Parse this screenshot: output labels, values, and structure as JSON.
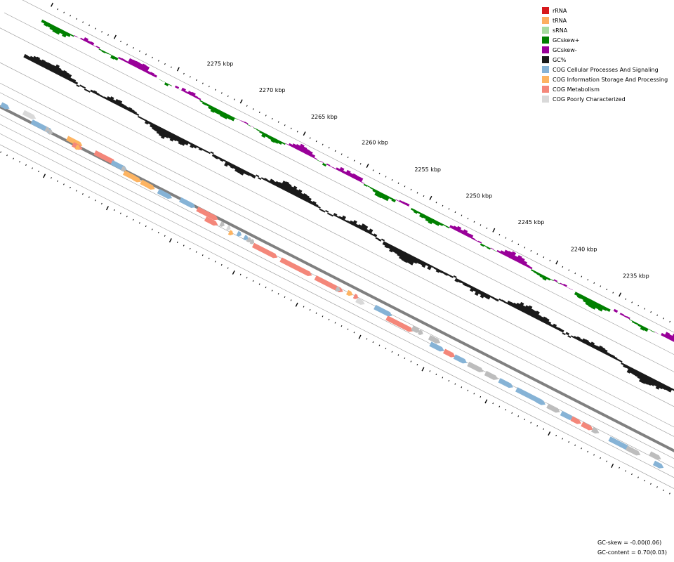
{
  "legend": [
    {
      "label": "rRNA",
      "color": "#d7191c",
      "icon": "rrna-swatch"
    },
    {
      "label": "tRNA",
      "color": "#fdae61",
      "icon": "trna-swatch"
    },
    {
      "label": "sRNA",
      "color": "#a6dba0",
      "icon": "srna-swatch"
    },
    {
      "label": "GCskew+",
      "color": "#008000",
      "icon": "gcskew-plus-swatch"
    },
    {
      "label": "GCskew-",
      "color": "#990099",
      "icon": "gcskew-minus-swatch"
    },
    {
      "label": "GC%",
      "color": "#1a1a1a",
      "icon": "gc-content-swatch"
    },
    {
      "label": "COG Cellular Processes And Signaling",
      "color": "#86b3d6",
      "icon": "cog-cellular-swatch"
    },
    {
      "label": "COG Information Storage And Processing",
      "color": "#fdb462",
      "icon": "cog-information-swatch"
    },
    {
      "label": "COG Metabolism",
      "color": "#f4877a",
      "icon": "cog-metabolism-swatch"
    },
    {
      "label": "COG Poorly Characterized",
      "color": "#d9d9d9",
      "icon": "cog-poorly-swatch"
    }
  ],
  "scale_labels": [
    "2275 kbp",
    "2270 kbp",
    "2265 kbp",
    "2260 kbp",
    "2255 kbp",
    "2250 kbp",
    "2245 kbp",
    "2240 kbp",
    "2235 kbp"
  ],
  "stats": {
    "gc_skew": "GC-skew = -0.00(0.06)",
    "gc_content": "GC-content = 0.70(0.03)"
  },
  "colors": {
    "gc_plus": "#008000",
    "gc_minus": "#990099",
    "gc_content": "#1a1a1a",
    "cellular": "#86b3d6",
    "information": "#fdb462",
    "metabolism": "#f4877a",
    "poorly": "#d9d9d9",
    "grey": "#bdbdbd",
    "backbone": "#808080",
    "guide": "#999999"
  },
  "features": [
    {
      "t": 0.0,
      "lane": 1,
      "len": 0.012,
      "cat": "cellular"
    },
    {
      "t": 0.03,
      "lane": -1,
      "len": 0.018,
      "cat": "poorly"
    },
    {
      "t": 0.045,
      "lane": 2,
      "len": 0.03,
      "cat": "cellular"
    },
    {
      "t": 0.065,
      "lane": 2,
      "len": 0.006,
      "cat": "grey"
    },
    {
      "t": 0.07,
      "lane": 2.6,
      "len": 0.006,
      "cat": "grey"
    },
    {
      "t": 0.095,
      "lane": 1.0,
      "len": 0.022,
      "cat": "information"
    },
    {
      "t": 0.105,
      "lane": 2.9,
      "len": 0.014,
      "cat": "metabolism"
    },
    {
      "t": 0.11,
      "lane": 3.4,
      "len": 0.006,
      "cat": "information"
    },
    {
      "t": 0.135,
      "lane": 1.2,
      "len": 0.03,
      "cat": "metabolism"
    },
    {
      "t": 0.16,
      "lane": 1.9,
      "len": 0.022,
      "cat": "cellular"
    },
    {
      "t": 0.175,
      "lane": 2.3,
      "len": 0.006,
      "cat": "grey"
    },
    {
      "t": 0.18,
      "lane": 4.2,
      "len": 0.02,
      "cat": "information"
    },
    {
      "t": 0.195,
      "lane": 4.4,
      "len": 0.01,
      "cat": "information"
    },
    {
      "t": 0.205,
      "lane": 4.5,
      "len": 0.014,
      "cat": "information"
    },
    {
      "t": 0.215,
      "lane": 4.6,
      "len": 0.01,
      "cat": "information"
    },
    {
      "t": 0.23,
      "lane": 4.8,
      "len": 0.02,
      "cat": "cellular"
    },
    {
      "t": 0.26,
      "lane": 3.2,
      "len": 0.022,
      "cat": "cellular"
    },
    {
      "t": 0.285,
      "lane": 3.6,
      "len": 0.03,
      "cat": "metabolism"
    },
    {
      "t": 0.3,
      "lane": 6.8,
      "len": 0.018,
      "cat": "metabolism"
    },
    {
      "t": 0.32,
      "lane": 5.2,
      "len": 0.006,
      "cat": "grey"
    },
    {
      "t": 0.33,
      "lane": 5.4,
      "len": 0.005,
      "cat": "poorly"
    },
    {
      "t": 0.335,
      "lane": 7.6,
      "len": 0.006,
      "cat": "information"
    },
    {
      "t": 0.345,
      "lane": 5.8,
      "len": 0.006,
      "cat": "cellular"
    },
    {
      "t": 0.355,
      "lane": 6.0,
      "len": 0.006,
      "cat": "cellular"
    },
    {
      "t": 0.36,
      "lane": 6.2,
      "len": 0.006,
      "cat": "grey"
    },
    {
      "t": 0.365,
      "lane": 6.4,
      "len": 0.005,
      "cat": "grey"
    },
    {
      "t": 0.37,
      "lane": 8.0,
      "len": 0.035,
      "cat": "metabolism"
    },
    {
      "t": 0.41,
      "lane": 8.2,
      "len": 0.045,
      "cat": "metabolism"
    },
    {
      "t": 0.46,
      "lane": 8.4,
      "len": 0.04,
      "cat": "metabolism"
    },
    {
      "t": 0.49,
      "lane": 8.6,
      "len": 0.006,
      "cat": "grey"
    },
    {
      "t": 0.505,
      "lane": 7.5,
      "len": 0.008,
      "cat": "information"
    },
    {
      "t": 0.515,
      "lane": 7.6,
      "len": 0.006,
      "cat": "metabolism"
    },
    {
      "t": 0.52,
      "lane": 9.2,
      "len": 0.012,
      "cat": "poorly"
    },
    {
      "t": 0.545,
      "lane": 7.9,
      "len": 0.025,
      "cat": "cellular"
    },
    {
      "t": 0.565,
      "lane": 10.6,
      "len": 0.038,
      "cat": "metabolism"
    },
    {
      "t": 0.6,
      "lane": 9.0,
      "len": 0.012,
      "cat": "grey"
    },
    {
      "t": 0.61,
      "lane": 9.2,
      "len": 0.006,
      "cat": "grey"
    },
    {
      "t": 0.625,
      "lane": 9.3,
      "len": 0.016,
      "cat": "grey"
    },
    {
      "t": 0.63,
      "lane": 12.8,
      "len": 0.02,
      "cat": "cellular"
    },
    {
      "t": 0.65,
      "lane": 12.9,
      "len": 0.016,
      "cat": "metabolism"
    },
    {
      "t": 0.665,
      "lane": 13.0,
      "len": 0.018,
      "cat": "cellular"
    },
    {
      "t": 0.685,
      "lane": 13.2,
      "len": 0.022,
      "cat": "grey"
    },
    {
      "t": 0.71,
      "lane": 13.4,
      "len": 0.018,
      "cat": "grey"
    },
    {
      "t": 0.73,
      "lane": 13.5,
      "len": 0.02,
      "cat": "cellular"
    },
    {
      "t": 0.755,
      "lane": 13.7,
      "len": 0.04,
      "cat": "cellular"
    },
    {
      "t": 0.785,
      "lane": 13.9,
      "len": 0.012,
      "cat": "cellular"
    },
    {
      "t": 0.8,
      "lane": 14.0,
      "len": 0.018,
      "cat": "grey"
    },
    {
      "t": 0.82,
      "lane": 14.2,
      "len": 0.018,
      "cat": "cellular"
    },
    {
      "t": 0.835,
      "lane": 14.3,
      "len": 0.014,
      "cat": "metabolism"
    },
    {
      "t": 0.85,
      "lane": 14.4,
      "len": 0.016,
      "cat": "metabolism"
    },
    {
      "t": 0.865,
      "lane": 14.5,
      "len": 0.01,
      "cat": "grey"
    },
    {
      "t": 0.89,
      "lane": 14.8,
      "len": 0.03,
      "cat": "cellular"
    },
    {
      "t": 0.915,
      "lane": 15.0,
      "len": 0.02,
      "cat": "grey"
    },
    {
      "t": 0.945,
      "lane": 11.4,
      "len": 0.016,
      "cat": "grey"
    },
    {
      "t": 0.955,
      "lane": 15.6,
      "len": 0.014,
      "cat": "cellular"
    },
    {
      "t": 0.985,
      "lane": 11.6,
      "len": 0.016,
      "cat": "grey"
    },
    {
      "t": 0.998,
      "lane": 11.7,
      "len": 0.01,
      "cat": "cellular"
    }
  ]
}
